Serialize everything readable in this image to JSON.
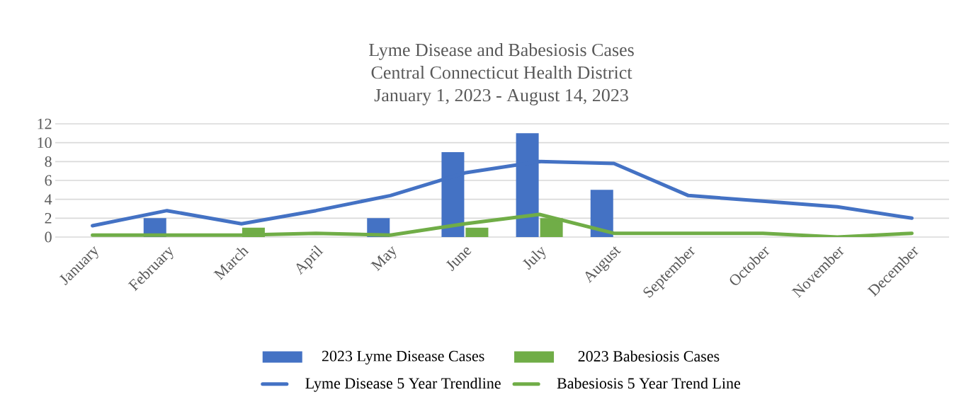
{
  "chart_data": {
    "type": "bar",
    "title": "Lyme Disease and Babesiosis Cases",
    "subtitle": "Central Connecticut Health District",
    "annotations": [
      "January 1, 2023 - August 14, 2023"
    ],
    "categories": [
      "January",
      "February",
      "March",
      "April",
      "May",
      "June",
      "July",
      "August",
      "September",
      "October",
      "November",
      "December"
    ],
    "series": [
      {
        "name": "2023 Lyme Disease Cases",
        "color": "#4472c4",
        "values": [
          0,
          2,
          0,
          0,
          2,
          9,
          11,
          5,
          null,
          null,
          null,
          null
        ]
      },
      {
        "name": "2023 Babesiosis Cases",
        "color": "#70ad47",
        "values": [
          0,
          0,
          1,
          0,
          0,
          1,
          2,
          0,
          null,
          null,
          null,
          null
        ]
      },
      {
        "name": "Lyme Disease 5 Year Trendline",
        "type": "line",
        "color": "#4472c4",
        "values": [
          1.2,
          2.8,
          1.4,
          2.8,
          4.4,
          6.8,
          8.0,
          7.8,
          4.4,
          3.8,
          3.2,
          2.0
        ]
      },
      {
        "name": "Babesiosis 5 Year Trend Line",
        "type": "line",
        "color": "#70ad47",
        "values": [
          0.2,
          0.2,
          0.2,
          0.4,
          0.2,
          1.4,
          2.4,
          0.4,
          0.4,
          0.4,
          0.0,
          0.4
        ]
      }
    ],
    "ylim": [
      0,
      12
    ],
    "yticks": [
      0,
      2,
      4,
      6,
      8,
      10,
      12
    ],
    "grid": "y",
    "legend": "bottom"
  }
}
